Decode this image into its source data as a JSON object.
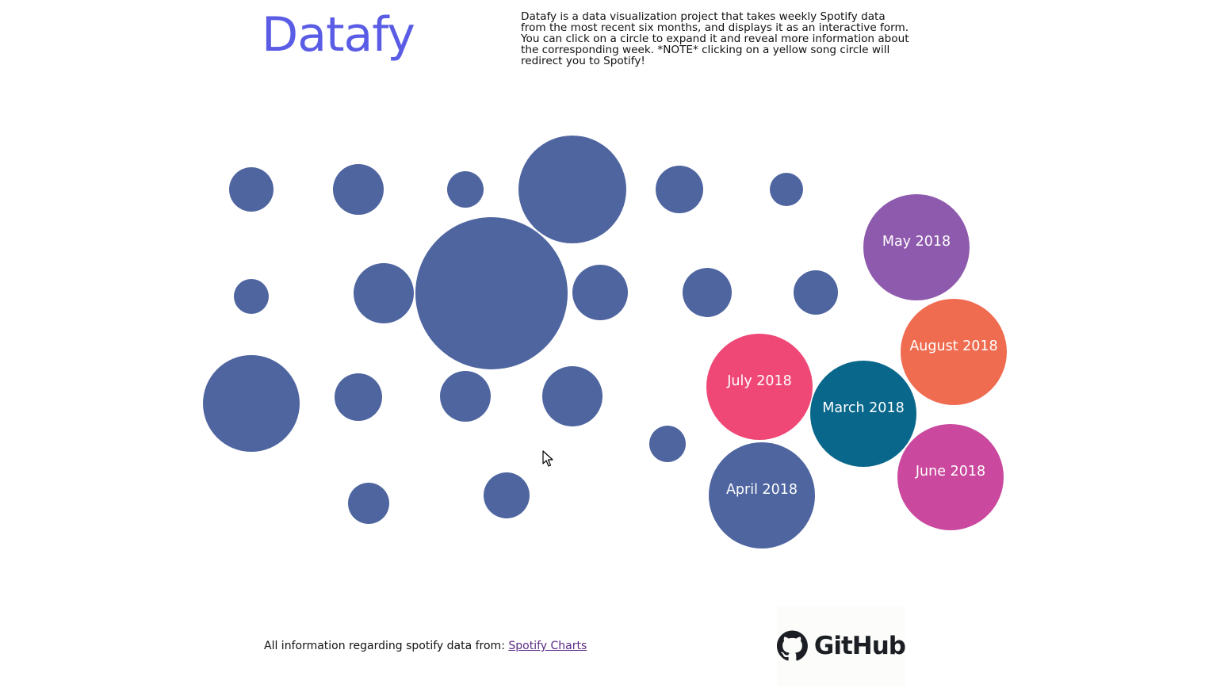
{
  "header": {
    "logo": "Datafy",
    "description": "Datafy is a data visualization project that takes weekly Spotify data from the most recent six months, and displays it as an interactive form. You can click on a circle to expand it and reveal more information about the corresponding week. *NOTE* clicking on a yellow song circle will redirect you to Spotify!"
  },
  "colors": {
    "logo": "#5a5ce6",
    "week_bubble": "#4f65a0",
    "march": "#08678a",
    "april": "#4f65a0",
    "may": "#8e5aad",
    "june": "#ca489d",
    "july": "#ef4877",
    "august": "#ef6c51"
  },
  "month_bubbles": [
    {
      "label": "May 2018",
      "color": "#8e5aad"
    },
    {
      "label": "August 2018",
      "color": "#ef6c51"
    },
    {
      "label": "July 2018",
      "color": "#ef4877"
    },
    {
      "label": "March 2018",
      "color": "#08678a"
    },
    {
      "label": "June 2018",
      "color": "#ca489d"
    },
    {
      "label": "April 2018",
      "color": "#4f65a0"
    }
  ],
  "footer": {
    "credit_text": "All information regarding spotify data from: ",
    "credit_link": "Spotify Charts",
    "github_label": "GitHub",
    "github_icon": "github-octocat-icon"
  }
}
